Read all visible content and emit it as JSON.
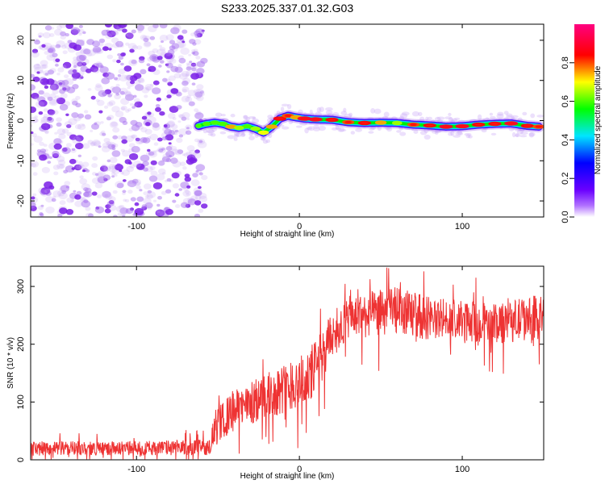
{
  "title": "S233.2025.337.01.32.G03",
  "colors": {
    "snr_line": "#ee3333",
    "speckle": "#8a2be2",
    "axis": "#000000",
    "background": "#ffffff"
  },
  "chart_data": [
    {
      "type": "heatmap",
      "name": "spectrogram",
      "xlabel": "Height of straight line (km)",
      "ylabel": "Frequency (Hz)",
      "xlim": [
        -165,
        150
      ],
      "ylim": [
        -24,
        24
      ],
      "xticks": [
        -100,
        0,
        100
      ],
      "xtick_labels": [
        "-100",
        "0",
        "100"
      ],
      "yticks": [
        -20,
        -10,
        0,
        10,
        20
      ],
      "ytick_labels": [
        "-20",
        "-10",
        "0",
        "10",
        "20"
      ],
      "noise_region_x": [
        -165,
        -60
      ],
      "ridge": {
        "x": [
          -62,
          -57,
          -52,
          -47,
          -42,
          -37,
          -32,
          -27,
          -22,
          -17,
          -12,
          -7,
          -2,
          3,
          10,
          20,
          30,
          40,
          50,
          60,
          70,
          80,
          90,
          100,
          110,
          120,
          130,
          140,
          147
        ],
        "freq": [
          -1.3,
          -0.8,
          -0.5,
          -0.8,
          -1.5,
          -1.8,
          -1.4,
          -2.0,
          -3.0,
          -1.5,
          0.5,
          1.2,
          0.8,
          0.5,
          0.3,
          0.2,
          -0.4,
          -0.6,
          -0.5,
          -0.6,
          -1.0,
          -1.2,
          -1.5,
          -1.4,
          -1.0,
          -0.8,
          -0.7,
          -1.3,
          -1.5
        ],
        "amp": [
          0.45,
          0.55,
          0.6,
          0.65,
          0.8,
          0.7,
          0.6,
          0.7,
          0.75,
          0.8,
          0.9,
          0.85,
          0.8,
          0.95,
          0.95,
          0.9,
          0.85,
          0.9,
          0.8,
          0.7,
          0.85,
          0.9,
          0.95,
          0.95,
          0.9,
          0.9,
          0.95,
          0.9,
          0.85
        ]
      },
      "colorbar": {
        "label": "Normalized spectral amplitude",
        "range": [
          0,
          1
        ],
        "ticks": [
          0.0,
          0.2,
          0.4,
          0.6,
          0.8
        ],
        "tick_labels": [
          "0.0",
          "0.2",
          "0.4",
          "0.6",
          "0.8"
        ]
      }
    },
    {
      "type": "line",
      "name": "snr",
      "xlabel": "Height of straight line (km)",
      "ylabel": "SNR (10 * v/v)",
      "xlim": [
        -165,
        150
      ],
      "ylim": [
        0,
        335
      ],
      "xticks": [
        -100,
        0,
        100
      ],
      "xtick_labels": [
        "-100",
        "0",
        "100"
      ],
      "yticks": [
        0,
        100,
        200,
        300
      ],
      "ytick_labels": [
        "0",
        "100",
        "200",
        "300"
      ],
      "envelope": {
        "x": [
          -165,
          -100,
          -55,
          -52,
          -40,
          -20,
          -5,
          5,
          13,
          20,
          30,
          50,
          60,
          80,
          100,
          120,
          150
        ],
        "mean": [
          20,
          20,
          22,
          55,
          85,
          110,
          130,
          140,
          175,
          215,
          245,
          255,
          258,
          245,
          240,
          235,
          250
        ],
        "spread": [
          12,
          12,
          14,
          30,
          35,
          40,
          45,
          50,
          45,
          40,
          38,
          40,
          42,
          38,
          35,
          35,
          40
        ]
      }
    }
  ]
}
